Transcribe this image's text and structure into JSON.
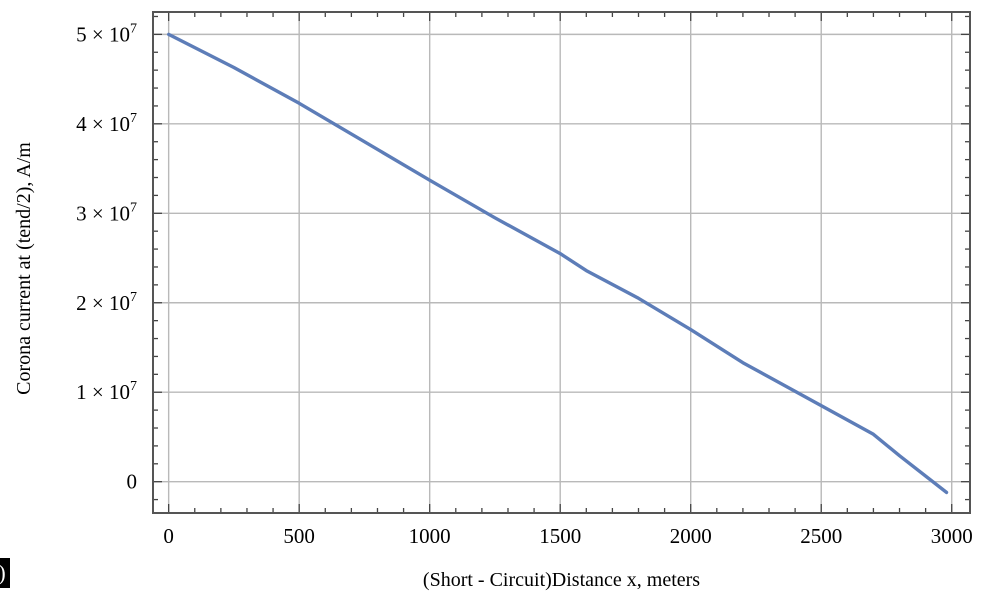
{
  "corner_mark": ")",
  "chart_data": {
    "type": "line",
    "xlabel": "(Short - Circuit)Distance x, meters",
    "ylabel": "Corona current at (tend/2), A/m",
    "xlim": [
      -60,
      3070
    ],
    "ylim": [
      -3500000,
      52500000
    ],
    "grid": true,
    "x_ticks": [
      {
        "value": 0,
        "label": "0"
      },
      {
        "value": 500,
        "label": "500"
      },
      {
        "value": 1000,
        "label": "1000"
      },
      {
        "value": 1500,
        "label": "1500"
      },
      {
        "value": 2000,
        "label": "2000"
      },
      {
        "value": 2500,
        "label": "2500"
      },
      {
        "value": 3000,
        "label": "3000"
      }
    ],
    "y_ticks": [
      {
        "value": 0,
        "mantissa": "0",
        "exponent": ""
      },
      {
        "value": 10000000,
        "mantissa": "1 × 10",
        "exponent": "7"
      },
      {
        "value": 20000000,
        "mantissa": "2 × 10",
        "exponent": "7"
      },
      {
        "value": 30000000,
        "mantissa": "3 × 10",
        "exponent": "7"
      },
      {
        "value": 40000000,
        "mantissa": "4 × 10",
        "exponent": "7"
      },
      {
        "value": 50000000,
        "mantissa": "5 × 10",
        "exponent": "7"
      }
    ],
    "series": [
      {
        "color": "#5d7db8",
        "x": [
          0,
          250,
          500,
          750,
          1000,
          1250,
          1500,
          1600,
          1800,
          2000,
          2200,
          2500,
          2700,
          2800,
          2980
        ],
        "y": [
          50000000,
          46300000,
          42300000,
          38000000,
          33700000,
          29500000,
          25500000,
          23600000,
          20500000,
          17000000,
          13300000,
          8500000,
          5300000,
          2900000,
          -1200000
        ]
      }
    ]
  }
}
